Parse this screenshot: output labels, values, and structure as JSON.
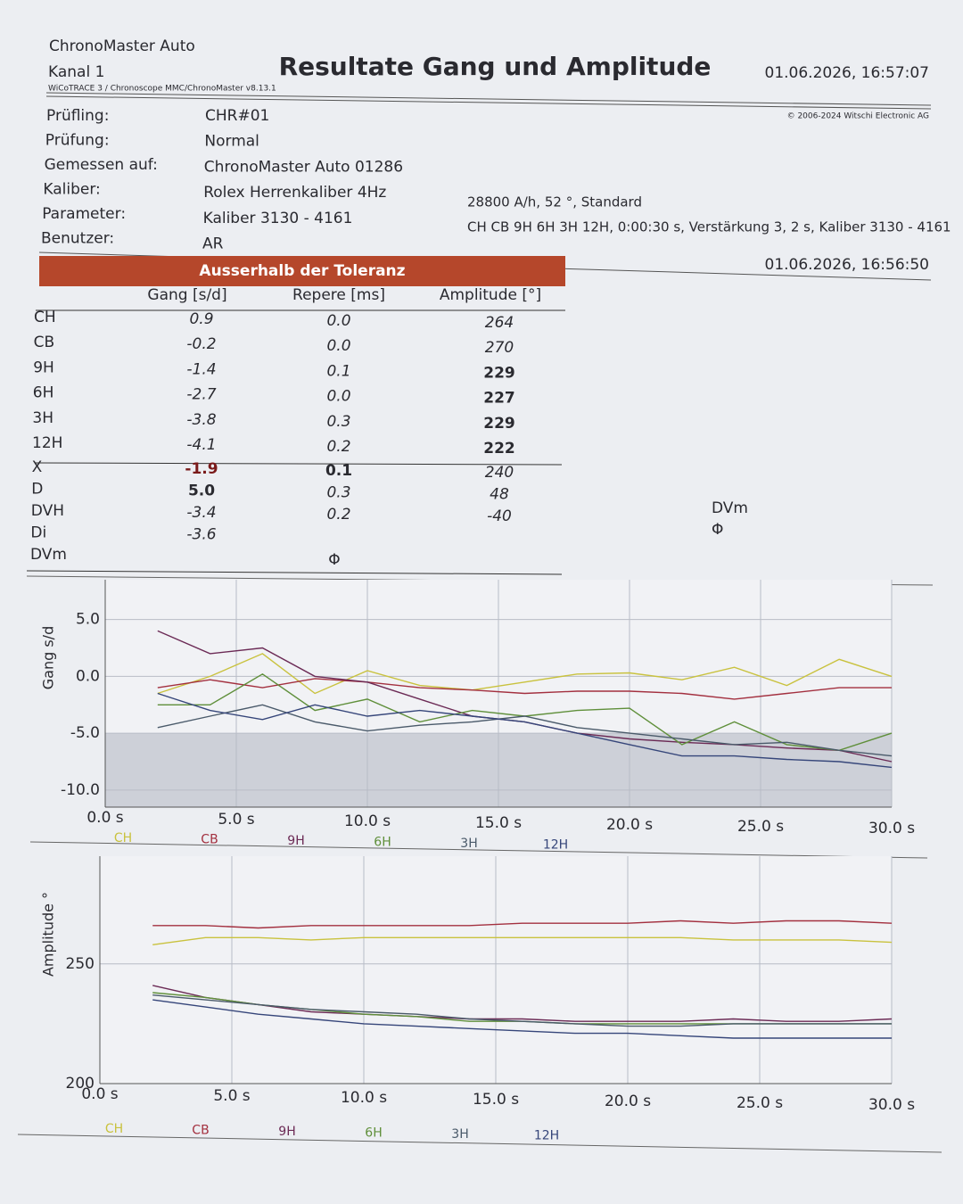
{
  "header": {
    "device": "ChronoMaster Auto",
    "channel": "Kanal 1",
    "software": "WiCoTRACE 3 / Chronoscope MMC/ChronoMaster v8.13.1",
    "title": "Resultate Gang und Amplitude",
    "printed": "01.06.2026, 16:57:07",
    "copyright": "© 2006-2024 Witschi Electronic AG"
  },
  "info": [
    {
      "label": "Prüfling:",
      "value": "CHR#01"
    },
    {
      "label": "Prüfung:",
      "value": "Normal"
    },
    {
      "label": "Gemessen auf:",
      "value": "ChronoMaster Auto 01286"
    },
    {
      "label": "Kaliber:",
      "value": "Rolex Herrenkaliber 4Hz"
    },
    {
      "label": "Parameter:",
      "value": "Kaliber 3130 - 4161"
    },
    {
      "label": "Benutzer:",
      "value": "AR"
    }
  ],
  "parameters": [
    "28800 A/h, 52 °, Standard",
    "CH CB 9H 6H 3H 12H, 0:00:30 s, Verstärkung 3, 2 s, Kaliber 3130 - 4161"
  ],
  "measured": "01.06.2026, 16:56:50",
  "table": {
    "banner": "Ausserhalb der Toleranz",
    "columns": [
      "Gang [s/d]",
      "Repere [ms]",
      "Amplitude [°]"
    ],
    "rows": [
      [
        "CH",
        "0.9",
        "0.0",
        "264"
      ],
      [
        "CB",
        "-0.2",
        "0.0",
        "270"
      ],
      [
        "9H",
        "-1.4",
        "0.1",
        "229"
      ],
      [
        "6H",
        "-2.7",
        "0.0",
        "227"
      ],
      [
        "3H",
        "-3.8",
        "0.3",
        "229"
      ],
      [
        "12H",
        "-4.1",
        "0.2",
        "222"
      ],
      [
        "X",
        "-1.9",
        "0.1",
        "240"
      ],
      [
        "D",
        "5.0",
        "0.3",
        "48"
      ],
      [
        "DVH",
        "-3.4",
        "0.2",
        "-40"
      ],
      [
        "Di",
        "-3.6"
      ],
      [
        "DVm"
      ]
    ],
    "phi": "Φ",
    "side": [
      "DVm",
      "Φ"
    ]
  },
  "chart_data": [
    {
      "type": "line",
      "y_label": "Gang  s/d",
      "x": [
        2,
        4,
        6,
        8,
        10,
        12,
        14,
        16,
        18,
        20,
        22,
        24,
        26,
        28,
        30
      ],
      "xlim": [
        0,
        30
      ],
      "xticks": [
        {
          "value": 0,
          "label": "0.0 s"
        },
        {
          "value": 5,
          "label": "5.0 s"
        },
        {
          "value": 10,
          "label": "10.0 s"
        },
        {
          "value": 15,
          "label": "15.0 s"
        },
        {
          "value": 20,
          "label": "20.0 s"
        },
        {
          "value": 25,
          "label": "25.0 s"
        },
        {
          "value": 30,
          "label": "30.0 s"
        }
      ],
      "ylim": [
        -11.5,
        8.5
      ],
      "yticks": [
        {
          "value": 5,
          "label": "5.0"
        },
        {
          "value": 0,
          "label": "0.0"
        },
        {
          "value": -5,
          "label": "-5.0"
        },
        {
          "value": -10,
          "label": "-10.0"
        }
      ],
      "tolerance_lower": -5,
      "grid": true,
      "series": [
        {
          "name": "CH",
          "color": "#c9c23e",
          "values": [
            -1.5,
            0,
            2.0,
            -1.5,
            0.5,
            -0.8,
            -1.2,
            -0.5,
            0.2,
            0.3,
            -0.3,
            0.8,
            -0.8,
            1.5,
            0
          ]
        },
        {
          "name": "CB",
          "color": "#a3303f",
          "values": [
            -1,
            -0.3,
            -1,
            -0.2,
            -0.5,
            -1,
            -1.2,
            -1.5,
            -1.3,
            -1.3,
            -1.5,
            -2.0,
            -1.5,
            -1.0,
            -1.0
          ]
        },
        {
          "name": "9H",
          "color": "#6b2a55",
          "values": [
            4.0,
            2.0,
            2.5,
            0,
            -0.5,
            -2.0,
            -3.5,
            -4.0,
            -5.0,
            -5.5,
            -5.8,
            -6.0,
            -6.3,
            -6.5,
            -7.5
          ]
        },
        {
          "name": "6H",
          "color": "#5f8f3a",
          "values": [
            -2.5,
            -2.5,
            0.2,
            -3.0,
            -2.0,
            -4.0,
            -3.0,
            -3.5,
            -3.0,
            -2.8,
            -6.0,
            -4.0,
            -6.0,
            -6.5,
            -5.0
          ]
        },
        {
          "name": "3H",
          "color": "#4a5a6a",
          "values": [
            -4.5,
            -3.5,
            -2.5,
            -4.0,
            -4.8,
            -4.3,
            -4.0,
            -3.5,
            -4.5,
            -5.0,
            -5.5,
            -6.0,
            -5.8,
            -6.5,
            -7.0
          ]
        },
        {
          "name": "12H",
          "color": "#36467a",
          "values": [
            -1.5,
            -3.0,
            -3.8,
            -2.5,
            -3.5,
            -3.0,
            -3.5,
            -4.0,
            -5.0,
            -6.0,
            -7.0,
            -7.0,
            -7.3,
            -7.5,
            -8.0
          ]
        }
      ]
    },
    {
      "type": "line",
      "y_label": "Amplitude  °",
      "x": [
        2,
        4,
        6,
        8,
        10,
        12,
        14,
        16,
        18,
        20,
        22,
        24,
        26,
        28,
        30
      ],
      "xlim": [
        0,
        30
      ],
      "xticks": [
        {
          "value": 0,
          "label": "0.0 s"
        },
        {
          "value": 5,
          "label": "5.0 s"
        },
        {
          "value": 10,
          "label": "10.0 s"
        },
        {
          "value": 15,
          "label": "15.0 s"
        },
        {
          "value": 20,
          "label": "20.0 s"
        },
        {
          "value": 25,
          "label": "25.0 s"
        },
        {
          "value": 30,
          "label": "30.0 s"
        }
      ],
      "ylim": [
        200,
        295
      ],
      "yticks": [
        250,
        200
      ],
      "grid": true,
      "series": [
        {
          "name": "CH",
          "color": "#c9c23e",
          "values": [
            258,
            261,
            261,
            260,
            261,
            261,
            261,
            261,
            261,
            261,
            261,
            260,
            260,
            260,
            259
          ]
        },
        {
          "name": "CB",
          "color": "#a3303f",
          "values": [
            266,
            266,
            265,
            266,
            266,
            266,
            266,
            267,
            267,
            267,
            268,
            267,
            268,
            268,
            267
          ]
        },
        {
          "name": "9H",
          "color": "#6b2a55",
          "values": [
            241,
            236,
            233,
            230,
            229,
            228,
            227,
            227,
            226,
            226,
            226,
            227,
            226,
            226,
            227
          ]
        },
        {
          "name": "6H",
          "color": "#5f8f3a",
          "values": [
            238,
            236,
            233,
            231,
            229,
            228,
            226,
            226,
            225,
            225,
            225,
            225,
            225,
            225,
            225
          ]
        },
        {
          "name": "3H",
          "color": "#4a5a6a",
          "values": [
            237,
            235,
            233,
            231,
            230,
            229,
            227,
            226,
            225,
            224,
            224,
            225,
            225,
            225,
            225
          ]
        },
        {
          "name": "12H",
          "color": "#36467a",
          "values": [
            235,
            232,
            229,
            227,
            225,
            224,
            223,
            222,
            221,
            221,
            220,
            219,
            219,
            219,
            219
          ]
        }
      ]
    }
  ]
}
